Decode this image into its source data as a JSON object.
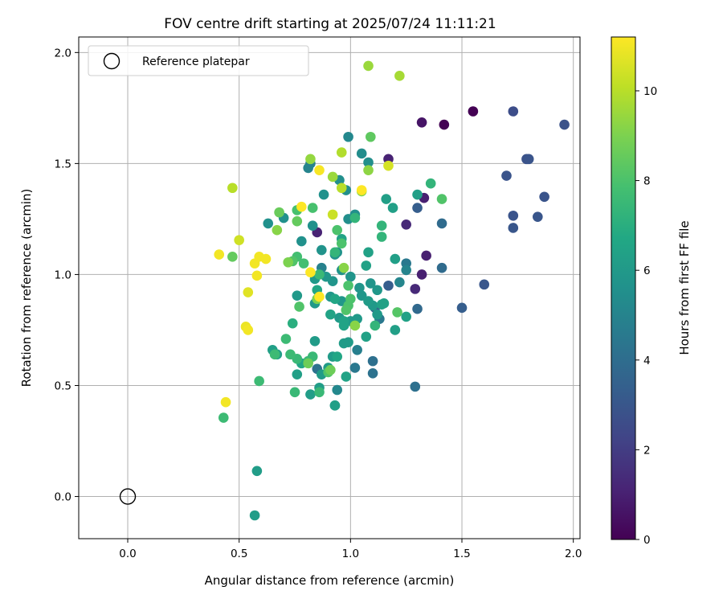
{
  "chart_data": {
    "type": "scatter",
    "title": "FOV centre drift starting at 2025/07/24 11:11:21",
    "xlabel": "Angular distance from reference (arcmin)",
    "ylabel": "Rotation from reference (arcmin)",
    "xlim": [
      -0.22,
      2.03
    ],
    "ylim": [
      -0.19,
      2.07
    ],
    "xticks": [
      0.0,
      0.5,
      1.0,
      1.5,
      2.0
    ],
    "yticks": [
      0.0,
      0.5,
      1.0,
      1.5,
      2.0
    ],
    "grid": true,
    "legend": {
      "position": "top-left",
      "entries": [
        "Reference platepar"
      ]
    },
    "reference_point": {
      "x": 0.0,
      "y": 0.0,
      "label": "Reference platepar"
    },
    "colorbar": {
      "label": "Hours from first FF file",
      "min": 0,
      "max": 11.2,
      "ticks": [
        0,
        2,
        4,
        6,
        8,
        10
      ],
      "colormap": "viridis"
    },
    "x_unit": "arcmin",
    "y_unit": "arcmin",
    "c_unit": "hours",
    "points": [
      [
        1.42,
        1.675,
        0.0
      ],
      [
        1.55,
        1.735,
        0.0
      ],
      [
        1.32,
        1.685,
        0.6
      ],
      [
        1.33,
        1.345,
        1.0
      ],
      [
        1.32,
        1.0,
        1.0
      ],
      [
        1.34,
        1.085,
        1.0
      ],
      [
        1.17,
        1.52,
        1.1
      ],
      [
        0.85,
        1.19,
        1.1
      ],
      [
        1.25,
        1.225,
        1.3
      ],
      [
        1.29,
        0.935,
        1.3
      ],
      [
        1.73,
        1.735,
        2.6
      ],
      [
        1.96,
        1.675,
        2.8
      ],
      [
        1.79,
        1.52,
        2.8
      ],
      [
        1.8,
        1.52,
        2.9
      ],
      [
        1.7,
        1.445,
        2.9
      ],
      [
        1.87,
        1.35,
        2.9
      ],
      [
        1.73,
        1.265,
        2.9
      ],
      [
        1.73,
        1.21,
        3.0
      ],
      [
        1.84,
        1.26,
        3.0
      ],
      [
        1.6,
        0.955,
        3.0
      ],
      [
        1.5,
        0.85,
        3.3
      ],
      [
        1.3,
        1.3,
        3.3
      ],
      [
        1.17,
        0.95,
        3.3
      ],
      [
        1.11,
        0.85,
        3.3
      ],
      [
        1.3,
        0.845,
        3.8
      ],
      [
        1.41,
        1.23,
        3.9
      ],
      [
        1.41,
        1.03,
        3.9
      ],
      [
        1.29,
        0.495,
        4.1
      ],
      [
        1.1,
        0.61,
        4.1
      ],
      [
        1.1,
        0.555,
        4.2
      ],
      [
        0.85,
        0.575,
        4.2
      ],
      [
        1.13,
        0.8,
        4.5
      ],
      [
        1.25,
        1.05,
        4.5
      ],
      [
        1.02,
        0.58,
        4.5
      ],
      [
        1.03,
        0.66,
        4.8
      ],
      [
        0.87,
        1.03,
        4.9
      ],
      [
        0.82,
        1.5,
        4.9
      ],
      [
        0.81,
        1.48,
        5.0
      ],
      [
        1.25,
        1.02,
        5.0
      ],
      [
        1.22,
        0.965,
        5.1
      ],
      [
        0.93,
        0.41,
        5.2
      ],
      [
        0.94,
        0.48,
        5.2
      ],
      [
        0.99,
        1.62,
        5.2
      ],
      [
        1.05,
        1.545,
        5.4
      ],
      [
        1.08,
        1.505,
        5.5
      ],
      [
        0.95,
        1.425,
        5.5
      ],
      [
        0.98,
        1.38,
        5.5
      ],
      [
        0.99,
        1.25,
        5.5
      ],
      [
        1.02,
        1.27,
        5.5
      ],
      [
        0.88,
        1.36,
        5.6
      ],
      [
        0.83,
        1.22,
        5.6
      ],
      [
        0.78,
        1.15,
        5.6
      ],
      [
        0.63,
        1.23,
        5.6
      ],
      [
        0.7,
        1.255,
        5.6
      ],
      [
        0.87,
        1.11,
        5.7
      ],
      [
        0.93,
        1.09,
        5.7
      ],
      [
        0.94,
        1.1,
        5.7
      ],
      [
        0.96,
        1.02,
        5.7
      ],
      [
        0.92,
        0.97,
        5.8
      ],
      [
        1.0,
        0.99,
        5.8
      ],
      [
        1.04,
        0.94,
        5.8
      ],
      [
        1.09,
        0.96,
        5.8
      ],
      [
        1.12,
        0.93,
        5.9
      ],
      [
        1.05,
        0.905,
        5.9
      ],
      [
        0.96,
        0.88,
        5.9
      ],
      [
        0.91,
        0.9,
        5.9
      ],
      [
        0.89,
        0.99,
        5.9
      ],
      [
        0.84,
        0.98,
        6.0
      ],
      [
        0.76,
        0.905,
        6.0
      ],
      [
        0.84,
        0.87,
        6.0
      ],
      [
        0.95,
        0.805,
        6.0
      ],
      [
        1.0,
        0.79,
        6.0
      ],
      [
        1.03,
        0.8,
        6.0
      ],
      [
        1.12,
        0.82,
        6.0
      ],
      [
        1.1,
        0.86,
        6.0
      ],
      [
        1.08,
        0.88,
        6.1
      ],
      [
        0.99,
        0.695,
        6.1
      ],
      [
        0.97,
        0.69,
        6.1
      ],
      [
        0.92,
        0.63,
        6.1
      ],
      [
        0.9,
        0.58,
        6.1
      ],
      [
        0.84,
        0.7,
        6.1
      ],
      [
        0.87,
        0.55,
        6.1
      ],
      [
        0.82,
        0.46,
        6.2
      ],
      [
        0.86,
        0.49,
        6.2
      ],
      [
        0.93,
        0.41,
        6.3
      ],
      [
        0.67,
        0.64,
        6.3
      ],
      [
        0.65,
        0.66,
        6.3
      ],
      [
        0.76,
        0.55,
        6.3
      ],
      [
        0.58,
        0.115,
        6.2
      ],
      [
        0.57,
        -0.085,
        6.2
      ],
      [
        1.16,
        1.34,
        6.3
      ],
      [
        1.19,
        1.3,
        6.3
      ],
      [
        1.3,
        1.36,
        6.3
      ],
      [
        1.2,
        1.07,
        6.3
      ],
      [
        1.2,
        0.75,
        6.3
      ],
      [
        1.25,
        0.81,
        6.4
      ],
      [
        1.14,
        0.865,
        6.4
      ],
      [
        1.15,
        0.87,
        6.4
      ],
      [
        1.07,
        0.72,
        6.4
      ],
      [
        1.07,
        1.04,
        6.4
      ],
      [
        1.08,
        1.1,
        6.4
      ],
      [
        0.96,
        1.16,
        6.5
      ],
      [
        0.91,
        0.82,
        6.5
      ],
      [
        0.97,
        0.77,
        6.5
      ],
      [
        0.97,
        0.79,
        6.5
      ],
      [
        0.98,
        0.54,
        6.5
      ],
      [
        0.94,
        0.63,
        6.6
      ],
      [
        0.93,
        0.89,
        6.6
      ],
      [
        0.85,
        0.93,
        6.6
      ],
      [
        0.78,
        0.6,
        6.6
      ],
      [
        0.74,
        0.78,
        7.0
      ],
      [
        1.36,
        1.41,
        7.3
      ],
      [
        1.11,
        0.77,
        7.3
      ],
      [
        1.14,
        1.22,
        7.3
      ],
      [
        1.14,
        1.17,
        7.3
      ],
      [
        1.02,
        1.255,
        7.3
      ],
      [
        0.93,
        1.1,
        7.3
      ],
      [
        0.86,
        1.0,
        7.5
      ],
      [
        0.76,
        0.62,
        7.5
      ],
      [
        0.75,
        0.47,
        7.5
      ],
      [
        0.81,
        0.61,
        7.5
      ],
      [
        0.83,
        0.63,
        7.5
      ],
      [
        0.86,
        0.47,
        7.5
      ],
      [
        0.73,
        0.64,
        7.6
      ],
      [
        0.66,
        0.64,
        7.6
      ],
      [
        0.71,
        0.71,
        7.6
      ],
      [
        0.59,
        0.52,
        7.6
      ],
      [
        0.43,
        0.355,
        7.6
      ],
      [
        0.79,
        1.05,
        7.8
      ],
      [
        0.76,
        1.08,
        7.8
      ],
      [
        0.76,
        1.29,
        7.9
      ],
      [
        0.83,
        1.3,
        7.9
      ],
      [
        0.94,
        1.2,
        8.0
      ],
      [
        0.96,
        1.14,
        8.0
      ],
      [
        0.99,
        0.95,
        8.0
      ],
      [
        1.0,
        0.89,
        8.0
      ],
      [
        0.99,
        0.86,
        8.0
      ],
      [
        0.98,
        0.84,
        8.1
      ],
      [
        0.9,
        0.56,
        8.1
      ],
      [
        0.77,
        0.855,
        8.1
      ],
      [
        0.74,
        1.06,
        8.1
      ],
      [
        1.41,
        1.34,
        8.1
      ],
      [
        1.21,
        0.83,
        8.2
      ],
      [
        1.09,
        1.62,
        8.4
      ],
      [
        0.47,
        1.08,
        8.5
      ],
      [
        0.76,
        1.24,
        8.5
      ],
      [
        0.68,
        1.28,
        8.6
      ],
      [
        0.91,
        0.57,
        8.7
      ],
      [
        0.81,
        0.6,
        8.7
      ],
      [
        0.85,
        0.89,
        9.0
      ],
      [
        0.72,
        1.055,
        9.0
      ],
      [
        1.05,
        1.375,
        9.0
      ],
      [
        0.97,
        1.03,
        9.2
      ],
      [
        1.02,
        0.77,
        9.2
      ],
      [
        0.67,
        1.2,
        9.2
      ],
      [
        1.08,
        1.47,
        9.3
      ],
      [
        0.82,
        1.52,
        9.4
      ],
      [
        0.92,
        1.44,
        9.5
      ],
      [
        1.08,
        1.94,
        9.5
      ],
      [
        1.22,
        1.895,
        9.7
      ],
      [
        0.96,
        1.55,
        9.9
      ],
      [
        0.96,
        1.39,
        10.0
      ],
      [
        0.47,
        1.39,
        10.0
      ],
      [
        0.92,
        1.27,
        10.3
      ],
      [
        0.5,
        1.155,
        10.4
      ],
      [
        0.54,
        0.92,
        10.7
      ],
      [
        0.53,
        0.765,
        10.9
      ],
      [
        0.54,
        0.75,
        11.0
      ],
      [
        0.58,
        0.995,
        11.0
      ],
      [
        0.57,
        1.05,
        11.0
      ],
      [
        0.59,
        1.08,
        11.0
      ],
      [
        0.62,
        1.07,
        11.0
      ],
      [
        0.41,
        1.09,
        11.0
      ],
      [
        0.44,
        0.425,
        11.0
      ],
      [
        0.86,
        1.47,
        11.1
      ],
      [
        0.78,
        1.305,
        11.2
      ],
      [
        0.82,
        1.01,
        11.2
      ],
      [
        0.86,
        0.9,
        11.2
      ],
      [
        1.05,
        1.38,
        11.2
      ],
      [
        1.17,
        1.49,
        10.5
      ]
    ]
  }
}
